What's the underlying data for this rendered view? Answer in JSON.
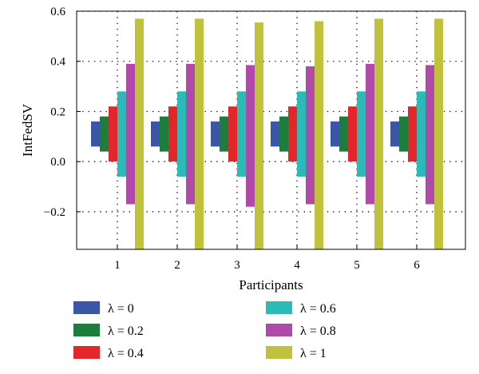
{
  "chart_data": {
    "type": "bar",
    "xlabel": "Participants",
    "ylabel": "IntFedSV",
    "categories": [
      "1",
      "2",
      "3",
      "4",
      "5",
      "6"
    ],
    "ylim": [
      -0.35,
      0.6
    ],
    "yticks": [
      "0.6",
      "0.4",
      "0.2",
      "0.0",
      "−0.2"
    ],
    "ytick_values": [
      0.6,
      0.4,
      0.2,
      0.0,
      -0.2
    ],
    "grid": "dotted",
    "legend_position": "bottom",
    "series": [
      {
        "name": "λ = 0",
        "color": "#3A57A7",
        "ranges": [
          [
            0.06,
            0.16
          ],
          [
            0.06,
            0.16
          ],
          [
            0.06,
            0.16
          ],
          [
            0.06,
            0.16
          ],
          [
            0.06,
            0.16
          ],
          [
            0.06,
            0.16
          ]
        ]
      },
      {
        "name": "λ = 0.2",
        "color": "#1B7E3A",
        "ranges": [
          [
            0.04,
            0.18
          ],
          [
            0.04,
            0.18
          ],
          [
            0.04,
            0.18
          ],
          [
            0.04,
            0.18
          ],
          [
            0.04,
            0.18
          ],
          [
            0.04,
            0.18
          ]
        ]
      },
      {
        "name": "λ = 0.4",
        "color": "#E3262A",
        "ranges": [
          [
            0.0,
            0.22
          ],
          [
            0.0,
            0.22
          ],
          [
            0.0,
            0.22
          ],
          [
            0.0,
            0.22
          ],
          [
            0.0,
            0.22
          ],
          [
            0.0,
            0.22
          ]
        ]
      },
      {
        "name": "λ = 0.6",
        "color": "#2BBAB6",
        "ranges": [
          [
            -0.06,
            0.28
          ],
          [
            -0.06,
            0.28
          ],
          [
            -0.06,
            0.28
          ],
          [
            -0.06,
            0.28
          ],
          [
            -0.06,
            0.28
          ],
          [
            -0.06,
            0.28
          ]
        ]
      },
      {
        "name": "λ = 0.8",
        "color": "#B04AA8",
        "ranges": [
          [
            -0.17,
            0.39
          ],
          [
            -0.17,
            0.39
          ],
          [
            -0.18,
            0.385
          ],
          [
            -0.17,
            0.38
          ],
          [
            -0.17,
            0.39
          ],
          [
            -0.17,
            0.385
          ]
        ]
      },
      {
        "name": "λ = 1",
        "color": "#C1C23B",
        "ranges": [
          [
            -0.35,
            0.57
          ],
          [
            -0.35,
            0.57
          ],
          [
            -0.35,
            0.555
          ],
          [
            -0.35,
            0.56
          ],
          [
            -0.35,
            0.57
          ],
          [
            -0.35,
            0.57
          ]
        ]
      }
    ]
  }
}
